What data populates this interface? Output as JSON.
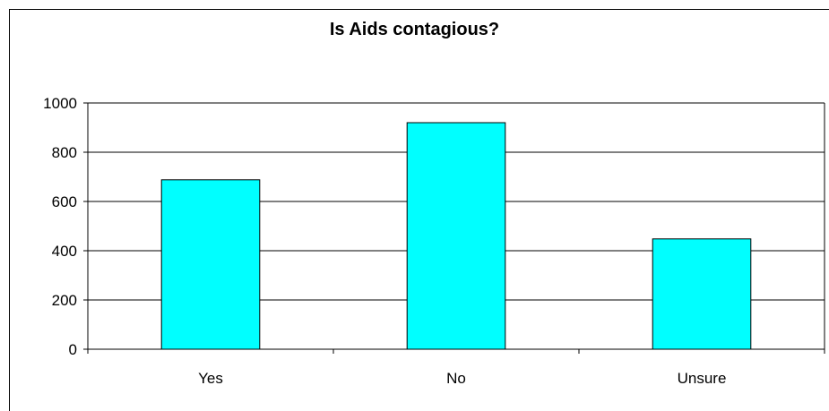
{
  "chart_data": {
    "type": "bar",
    "title": "Is Aids contagious?",
    "categories": [
      "Yes",
      "No",
      "Unsure"
    ],
    "values": [
      688,
      920,
      448
    ],
    "xlabel": "",
    "ylabel": "",
    "ylim": [
      0,
      1000
    ],
    "yticks": [
      0,
      200,
      400,
      600,
      800,
      1000
    ],
    "grid": true,
    "legend": "none",
    "colors": {
      "bar_fill": "#00FFFF",
      "bar_stroke": "#000000",
      "grid": "#000000"
    }
  }
}
